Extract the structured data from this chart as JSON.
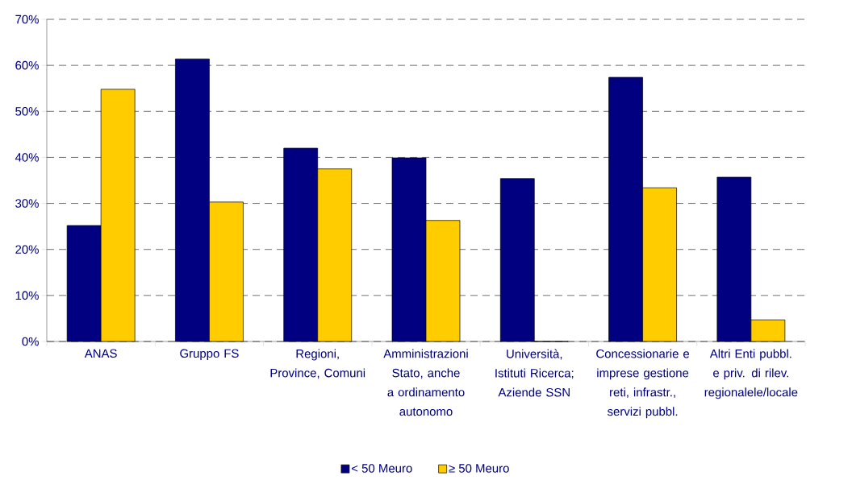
{
  "chart_data": {
    "type": "bar",
    "categories": [
      "ANAS",
      "Gruppo FS",
      "Regioni, Province, Comuni",
      "Amministrazioni Stato, anche a ordinamento autonomo",
      "Università, Istituti Ricerca; Aziende SSN",
      "Concessionarie e imprese gestione reti, infrastr., servizi pubbl.",
      "Altri Enti pubbl. e priv. di rilev. regionalele/locale"
    ],
    "series": [
      {
        "name": "< 50 Meuro",
        "color": "#000080",
        "values": [
          25.2,
          61.4,
          42.0,
          39.9,
          35.4,
          57.4,
          35.7
        ]
      },
      {
        "name": "≥ 50 Meuro",
        "color": "#ffcc00",
        "values": [
          54.8,
          30.3,
          37.5,
          26.3,
          0,
          33.4,
          4.7
        ]
      }
    ],
    "ylim": [
      0,
      70
    ],
    "yticks": [
      {
        "value": 0,
        "label": "0%"
      },
      {
        "value": 10,
        "label": "10%"
      },
      {
        "value": 20,
        "label": "20%"
      },
      {
        "value": 30,
        "label": "30%"
      },
      {
        "value": 40,
        "label": "40%"
      },
      {
        "value": 50,
        "label": "50%"
      },
      {
        "value": 60,
        "label": "60%"
      },
      {
        "value": 70,
        "label": "70%"
      }
    ],
    "grid": "y",
    "legend": "bottom"
  }
}
